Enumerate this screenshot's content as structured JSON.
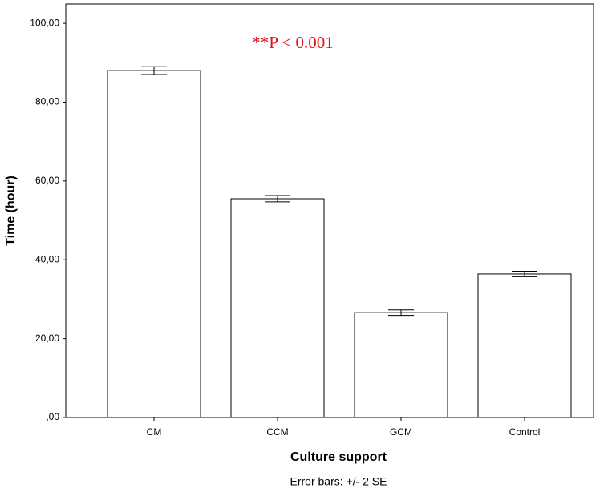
{
  "chart_data": {
    "type": "bar",
    "annotation": "**P < 0.001",
    "x_label": "Culture support",
    "y_label": "Time (hour)",
    "caption": "Error bars: +/- 2 SE",
    "categories": [
      "CM",
      "CCM",
      "GCM",
      "Control"
    ],
    "values": [
      88.0,
      55.5,
      26.6,
      36.4
    ],
    "errors": [
      1.0,
      0.8,
      0.7,
      0.7
    ],
    "color": "#ffffff",
    "ylim": [
      0,
      104.9
    ],
    "yticks": [
      {
        "value": 0,
        "label": ",00"
      },
      {
        "value": 20,
        "label": "20,00"
      },
      {
        "value": 40,
        "label": "40,00"
      },
      {
        "value": 60,
        "label": "60,00"
      },
      {
        "value": 80,
        "label": "80,00"
      },
      {
        "value": 100,
        "label": "100,00"
      }
    ],
    "grid": false
  }
}
